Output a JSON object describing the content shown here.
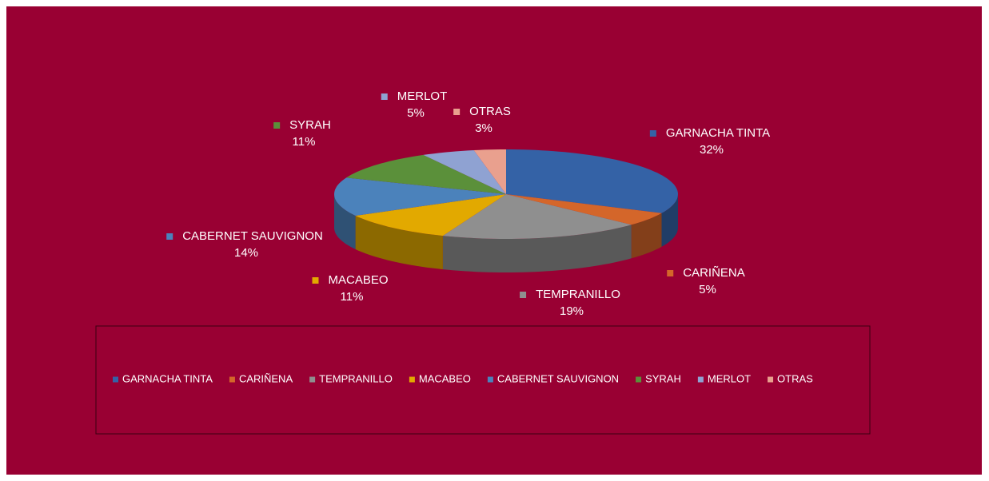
{
  "chart_data": {
    "type": "pie",
    "categories": [
      "GARNACHA TINTA",
      "CARIÑENA",
      "TEMPRANILLO",
      "MACABEO",
      "CABERNET SAUVIGNON",
      "SYRAH",
      "MERLOT",
      "OTRAS"
    ],
    "values": [
      32,
      5,
      19,
      11,
      14,
      11,
      5,
      3
    ],
    "value_labels": [
      "32%",
      "5%",
      "19%",
      "11%",
      "14%",
      "11%",
      "5%",
      "3%"
    ],
    "colors": [
      "#3462a6",
      "#d4662a",
      "#8f8f8f",
      "#e2a900",
      "#4b82bb",
      "#5b903a",
      "#8fa2d2",
      "#e9a08e"
    ],
    "legend": "bottom"
  }
}
